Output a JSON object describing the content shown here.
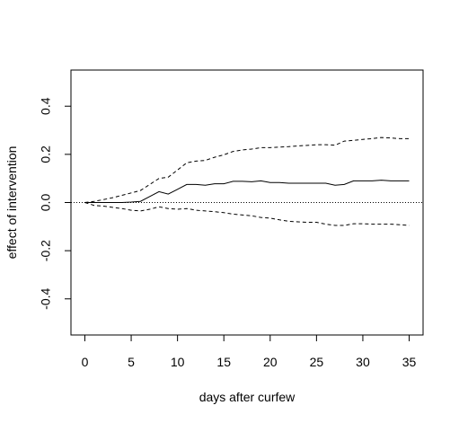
{
  "chart_data": {
    "type": "line",
    "xlabel": "days after curfew",
    "ylabel": "effect of intervention",
    "xlim": [
      -1.5,
      36.5
    ],
    "ylim": [
      -0.55,
      0.55
    ],
    "x_ticks": [
      0,
      5,
      10,
      15,
      20,
      25,
      30,
      35
    ],
    "x_tick_labels": [
      "0",
      "5",
      "10",
      "15",
      "20",
      "25",
      "30",
      "35"
    ],
    "y_ticks": [
      -0.4,
      -0.2,
      0.0,
      0.2,
      0.4
    ],
    "y_tick_labels": [
      "-0.4",
      "-0.2",
      "0.0",
      "0.2",
      "0.4"
    ],
    "grid": false,
    "reference_line": {
      "y": 0,
      "style": "dotted"
    },
    "x": [
      0,
      1,
      2,
      3,
      4,
      5,
      6,
      7,
      8,
      9,
      10,
      11,
      12,
      13,
      14,
      15,
      16,
      17,
      18,
      19,
      20,
      21,
      22,
      23,
      24,
      25,
      26,
      27,
      28,
      29,
      30,
      31,
      32,
      33,
      34,
      35
    ],
    "series": [
      {
        "style": "solid",
        "values": [
          0,
          0,
          0,
          0,
          0,
          0.002,
          0.005,
          0.025,
          0.045,
          0.035,
          0.055,
          0.075,
          0.075,
          0.072,
          0.078,
          0.078,
          0.088,
          0.088,
          0.086,
          0.09,
          0.083,
          0.083,
          0.08,
          0.08,
          0.08,
          0.08,
          0.08,
          0.072,
          0.075,
          0.09,
          0.09,
          0.09,
          0.093,
          0.09,
          0.09,
          0.09
        ]
      },
      {
        "style": "dashed",
        "values": [
          0,
          0.005,
          0.012,
          0.02,
          0.03,
          0.04,
          0.05,
          0.075,
          0.1,
          0.105,
          0.135,
          0.165,
          0.172,
          0.175,
          0.188,
          0.198,
          0.212,
          0.218,
          0.222,
          0.228,
          0.228,
          0.23,
          0.232,
          0.235,
          0.237,
          0.24,
          0.24,
          0.238,
          0.255,
          0.258,
          0.262,
          0.265,
          0.27,
          0.268,
          0.265,
          0.265
        ]
      },
      {
        "style": "dashed",
        "values": [
          0,
          -0.012,
          -0.015,
          -0.02,
          -0.025,
          -0.032,
          -0.035,
          -0.028,
          -0.018,
          -0.025,
          -0.028,
          -0.025,
          -0.032,
          -0.035,
          -0.038,
          -0.042,
          -0.048,
          -0.052,
          -0.055,
          -0.062,
          -0.065,
          -0.072,
          -0.078,
          -0.08,
          -0.082,
          -0.082,
          -0.09,
          -0.095,
          -0.095,
          -0.088,
          -0.088,
          -0.09,
          -0.09,
          -0.09,
          -0.092,
          -0.095
        ]
      }
    ]
  }
}
